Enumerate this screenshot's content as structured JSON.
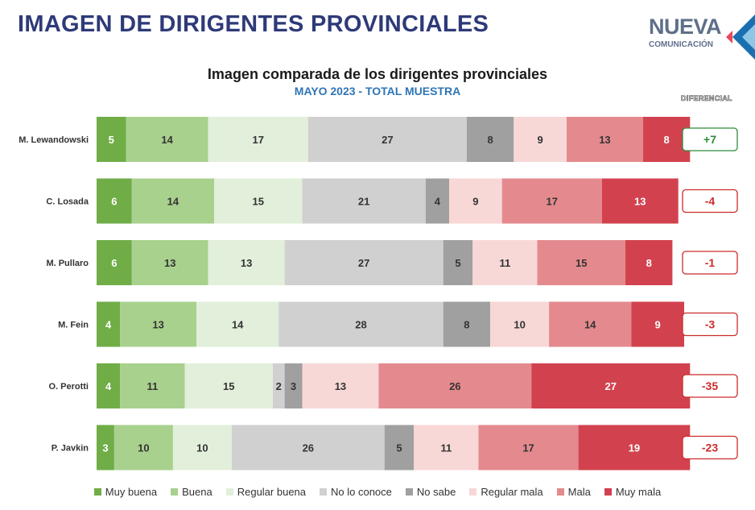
{
  "header": {
    "title": "IMAGEN DE DIRIGENTES PROVINCIALES",
    "logo_main": "NUEVA",
    "logo_sub": "COMUNICACIÓN"
  },
  "chart_data": {
    "type": "bar",
    "orientation": "horizontal",
    "stacked": true,
    "title": "Imagen comparada de los dirigentes provinciales",
    "subtitle": "MAYO 2023 - TOTAL MUESTRA",
    "diff_label": "DIFERENCIAL",
    "categories": [
      "M. Lewandowski",
      "C. Losada",
      "M. Pullaro",
      "M. Fein",
      "O. Perotti",
      "P. Javkin"
    ],
    "series": [
      {
        "name": "Muy buena",
        "color": "#70ad47",
        "text_color": "#ffffff",
        "values": [
          5,
          6,
          6,
          4,
          4,
          3
        ]
      },
      {
        "name": "Buena",
        "color": "#a9d18e",
        "text_color": "#333333",
        "values": [
          14,
          14,
          13,
          13,
          11,
          10
        ]
      },
      {
        "name": "Regular buena",
        "color": "#e2efda",
        "text_color": "#333333",
        "values": [
          17,
          15,
          13,
          14,
          15,
          10
        ]
      },
      {
        "name": "No lo conoce",
        "color": "#d0d0d0",
        "text_color": "#333333",
        "values": [
          27,
          21,
          27,
          28,
          2,
          26
        ]
      },
      {
        "name": "No sabe",
        "color": "#a0a0a0",
        "text_color": "#333333",
        "values": [
          8,
          4,
          5,
          8,
          3,
          5
        ]
      },
      {
        "name": "Regular mala",
        "color": "#f8d7d7",
        "text_color": "#333333",
        "values": [
          9,
          9,
          11,
          10,
          13,
          11
        ]
      },
      {
        "name": "Mala",
        "color": "#e48a8e",
        "text_color": "#333333",
        "values": [
          13,
          17,
          15,
          14,
          26,
          17
        ]
      },
      {
        "name": "Muy mala",
        "color": "#d2424e",
        "text_color": "#ffffff",
        "values": [
          8,
          13,
          8,
          9,
          27,
          19
        ]
      }
    ],
    "diferencial": [
      "+7",
      "-4",
      "-1",
      "-3",
      "-35",
      "-23"
    ],
    "diferencial_colors": [
      "#2e8b3a",
      "#cc2b2b",
      "#cc2b2b",
      "#cc2b2b",
      "#cc2b2b",
      "#cc2b2b"
    ]
  }
}
